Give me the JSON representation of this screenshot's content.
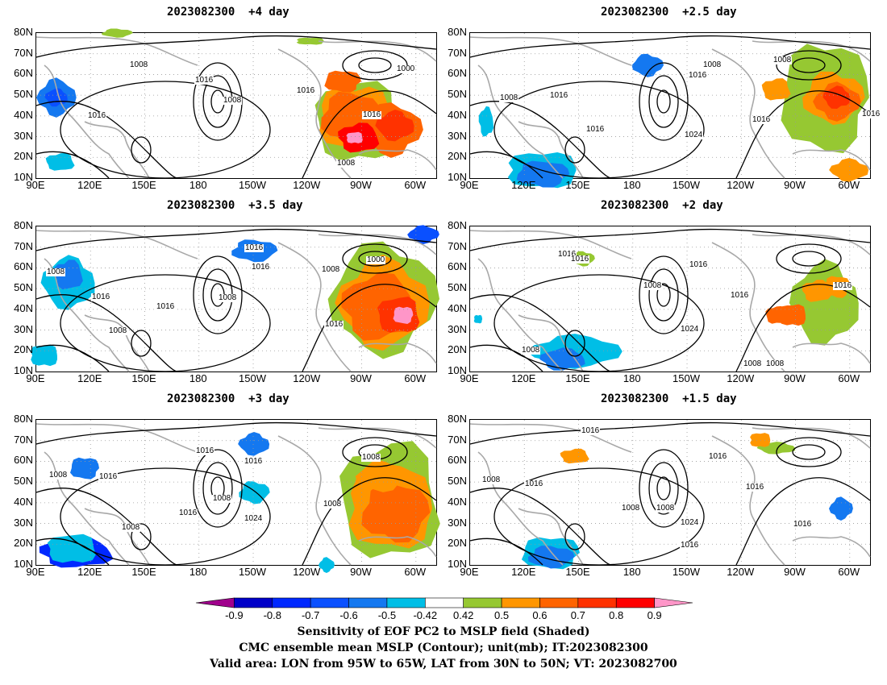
{
  "panels": [
    {
      "title": "2023082300  +4 day"
    },
    {
      "title": "2023082300  +2.5 day"
    },
    {
      "title": "2023082300  +3.5 day"
    },
    {
      "title": "2023082300  +2 day"
    },
    {
      "title": "2023082300  +3 day"
    },
    {
      "title": "2023082300  +1.5 day"
    }
  ],
  "axes": {
    "lat_ticks": [
      "80N",
      "70N",
      "60N",
      "50N",
      "40N",
      "30N",
      "20N",
      "10N"
    ],
    "lon_ticks": [
      "90E",
      "120E",
      "150E",
      "180",
      "150W",
      "120W",
      "90W",
      "60W"
    ]
  },
  "contour_labels": {
    "p0": [
      "1008",
      "1016",
      "1008",
      "1016",
      "1016",
      "1000",
      "1016",
      "1008"
    ],
    "p1": [
      "1008",
      "1008",
      "1016",
      "1016",
      "1016",
      "1024",
      "1008",
      "1016",
      "1016"
    ],
    "p2": [
      "1016",
      "1016",
      "1008",
      "1008",
      "1016",
      "1000",
      "1008",
      "1016",
      "1016",
      "1008"
    ],
    "p3": [
      "1016",
      "1016",
      "1008",
      "1016",
      "1008",
      "1016",
      "1024",
      "1016",
      "1008",
      "1008"
    ],
    "p4": [
      "1016",
      "1016",
      "1008",
      "1016",
      "1008",
      "1024",
      "1008",
      "1016",
      "1008",
      "1008"
    ],
    "p5": [
      "1016",
      "1016",
      "1008",
      "1016",
      "1016",
      "1008",
      "1024",
      "1016",
      "1016",
      "1008"
    ]
  },
  "colorbar": {
    "labels": [
      "-0.9",
      "-0.8",
      "-0.7",
      "-0.6",
      "-0.5",
      "-0.42",
      "0.42",
      "0.5",
      "0.6",
      "0.7",
      "0.8",
      "0.9"
    ],
    "colors": [
      "#a0008c",
      "#0000c8",
      "#0028ff",
      "#0a50ff",
      "#1478f0",
      "#00bee6",
      "#ffffff",
      "#96c832",
      "#ff9600",
      "#ff6400",
      "#ff3200",
      "#ff0000",
      "#ff96c8"
    ]
  },
  "caption": {
    "line1": "Sensitivity of EOF PC2 to MSLP field (Shaded)",
    "line2": "CMC ensemble mean MSLP (Contour); unit(mb); IT:2023082300",
    "line3": "Valid area: LON from 95W to 65W, LAT from 30N to 50N; VT: 2023082700"
  }
}
